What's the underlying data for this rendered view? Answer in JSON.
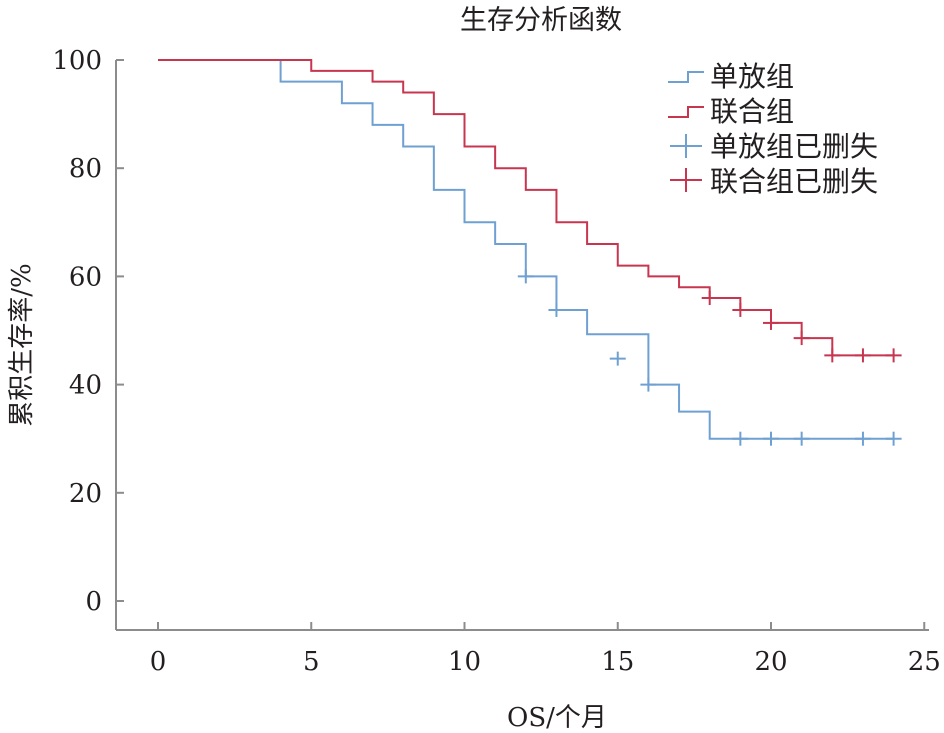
{
  "chart_data": {
    "type": "line",
    "subtype": "kaplan-meier-step",
    "title": "生存分析函数",
    "xlabel": "OS/个月",
    "ylabel": "累积生存率/%",
    "xlim": [
      -1.5,
      25
    ],
    "ylim": [
      -5,
      100
    ],
    "xticks": [
      0,
      5,
      10,
      15,
      20,
      25
    ],
    "yticks": [
      0,
      20,
      40,
      60,
      80,
      100
    ],
    "grid": false,
    "legend_position": "top-right",
    "legend": [
      "单放组",
      "联合组",
      "单放组已删失",
      "联合组已删失"
    ],
    "series": [
      {
        "name": "单放组",
        "color": "#6fa0d2",
        "steps": [
          [
            0,
            100
          ],
          [
            4,
            96
          ],
          [
            6,
            92
          ],
          [
            7,
            88
          ],
          [
            8,
            84
          ],
          [
            9,
            76
          ],
          [
            10,
            70
          ],
          [
            11,
            66
          ],
          [
            12,
            60
          ],
          [
            13,
            53.8
          ],
          [
            14,
            49.3
          ],
          [
            16,
            40
          ],
          [
            17,
            35
          ],
          [
            18,
            30
          ],
          [
            24,
            30
          ]
        ],
        "censored": [
          [
            12,
            60
          ],
          [
            13,
            53.8
          ],
          [
            15,
            44.8
          ],
          [
            16,
            40
          ],
          [
            19,
            30
          ],
          [
            20,
            30
          ],
          [
            21,
            30
          ],
          [
            23,
            30
          ],
          [
            24,
            30
          ]
        ]
      },
      {
        "name": "联合组",
        "color": "#c8354f",
        "steps": [
          [
            0,
            100
          ],
          [
            5,
            98
          ],
          [
            7,
            96
          ],
          [
            8,
            94
          ],
          [
            9,
            90
          ],
          [
            10,
            84
          ],
          [
            11,
            80
          ],
          [
            12,
            76
          ],
          [
            13,
            70
          ],
          [
            14,
            66
          ],
          [
            15,
            62
          ],
          [
            16,
            60
          ],
          [
            17,
            58
          ],
          [
            18,
            56
          ],
          [
            19,
            53.8
          ],
          [
            20,
            51.4
          ],
          [
            21,
            48.6
          ],
          [
            22,
            45.4
          ],
          [
            24,
            45.4
          ]
        ],
        "censored": [
          [
            18,
            56
          ],
          [
            19,
            53.8
          ],
          [
            20,
            51.4
          ],
          [
            21,
            48.6
          ],
          [
            22,
            45.4
          ],
          [
            23,
            45.4
          ],
          [
            24,
            45.4
          ]
        ]
      }
    ]
  }
}
